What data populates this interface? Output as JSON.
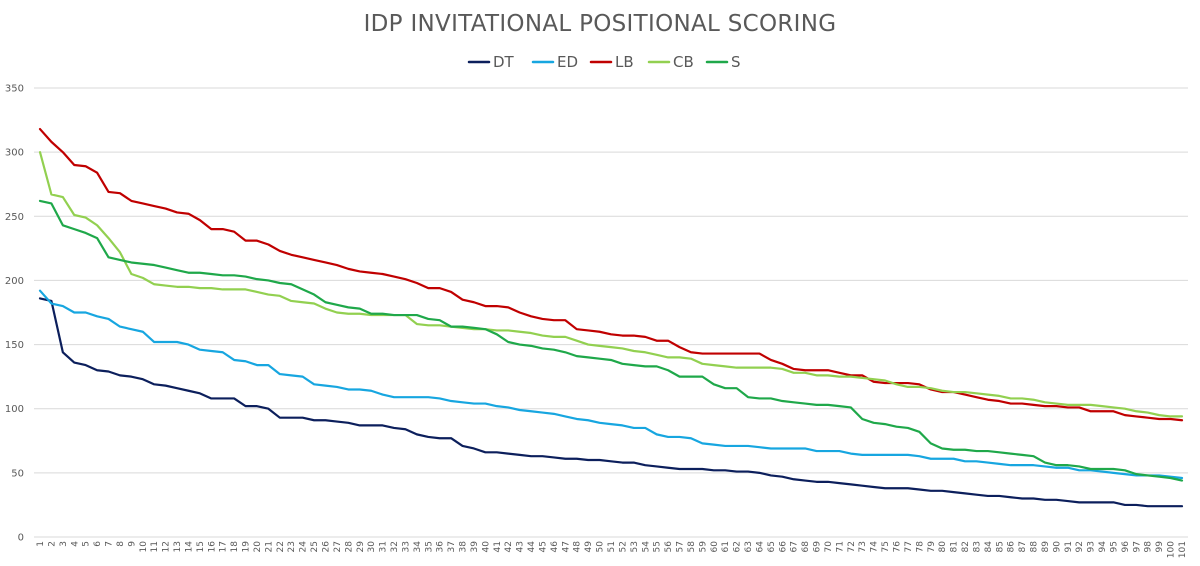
{
  "chart_data": {
    "type": "line",
    "title": "IDP INVITATIONAL POSITIONAL SCORING",
    "xlabel": "",
    "ylabel": "",
    "ylim": [
      0,
      350
    ],
    "yticks": [
      0,
      50,
      100,
      150,
      200,
      250,
      300,
      350
    ],
    "x": [
      1,
      2,
      3,
      4,
      5,
      6,
      7,
      8,
      9,
      10,
      11,
      12,
      13,
      14,
      15,
      16,
      17,
      18,
      19,
      20,
      21,
      22,
      23,
      24,
      25,
      26,
      27,
      28,
      29,
      30,
      31,
      32,
      33,
      34,
      35,
      36,
      37,
      38,
      39,
      40,
      41,
      42,
      43,
      44,
      45,
      46,
      47,
      48,
      49,
      50,
      51,
      52,
      53,
      54,
      55,
      56,
      57,
      58,
      59,
      60,
      61,
      62,
      63,
      64,
      65,
      66,
      67,
      68,
      69,
      70,
      71,
      72,
      73,
      74,
      75,
      76,
      77,
      78,
      79,
      80,
      81,
      82,
      83,
      84,
      85,
      86,
      87,
      88,
      89,
      90,
      91,
      92,
      93,
      94,
      95,
      96,
      97,
      98,
      99,
      100,
      101
    ],
    "grid": "horizontal",
    "legend_position": "top",
    "series": [
      {
        "name": "DT",
        "color": "#0c1f5c",
        "values": [
          186,
          184,
          144,
          136,
          134,
          130,
          129,
          126,
          125,
          123,
          119,
          118,
          116,
          114,
          112,
          108,
          108,
          108,
          102,
          102,
          100,
          93,
          93,
          93,
          91,
          91,
          90,
          89,
          87,
          87,
          87,
          85,
          84,
          80,
          78,
          77,
          77,
          71,
          69,
          66,
          66,
          65,
          64,
          63,
          63,
          62,
          61,
          61,
          60,
          60,
          59,
          58,
          58,
          56,
          55,
          54,
          53,
          53,
          53,
          52,
          52,
          51,
          51,
          50,
          48,
          47,
          45,
          44,
          43,
          43,
          42,
          41,
          40,
          39,
          38,
          38,
          38,
          37,
          36,
          36,
          35,
          34,
          33,
          32,
          32,
          31,
          30,
          30,
          29,
          29,
          28,
          27,
          27,
          27,
          27,
          25,
          25,
          24,
          24,
          24,
          24
        ]
      },
      {
        "name": "ED",
        "color": "#17a6e0",
        "values": [
          192,
          182,
          180,
          175,
          175,
          172,
          170,
          164,
          162,
          160,
          152,
          152,
          152,
          150,
          146,
          145,
          144,
          138,
          137,
          134,
          134,
          127,
          126,
          125,
          119,
          118,
          117,
          115,
          115,
          114,
          111,
          109,
          109,
          109,
          109,
          108,
          106,
          105,
          104,
          104,
          102,
          101,
          99,
          98,
          97,
          96,
          94,
          92,
          91,
          89,
          88,
          87,
          85,
          85,
          80,
          78,
          78,
          77,
          73,
          72,
          71,
          71,
          71,
          70,
          69,
          69,
          69,
          69,
          67,
          67,
          67,
          65,
          64,
          64,
          64,
          64,
          64,
          63,
          61,
          61,
          61,
          59,
          59,
          58,
          57,
          56,
          56,
          56,
          55,
          54,
          54,
          52,
          52,
          51,
          50,
          49,
          48,
          48,
          48,
          47,
          46
        ]
      },
      {
        "name": "LB",
        "color": "#c00000",
        "values": [
          318,
          308,
          300,
          290,
          289,
          284,
          269,
          268,
          262,
          260,
          258,
          256,
          253,
          252,
          247,
          240,
          240,
          238,
          231,
          231,
          228,
          223,
          220,
          218,
          216,
          214,
          212,
          209,
          207,
          206,
          205,
          203,
          201,
          198,
          194,
          194,
          191,
          185,
          183,
          180,
          180,
          179,
          175,
          172,
          170,
          169,
          169,
          162,
          161,
          160,
          158,
          157,
          157,
          156,
          153,
          153,
          148,
          144,
          143,
          143,
          143,
          143,
          143,
          143,
          138,
          135,
          131,
          130,
          130,
          130,
          128,
          126,
          126,
          121,
          120,
          120,
          120,
          119,
          115,
          113,
          113,
          111,
          109,
          107,
          106,
          104,
          104,
          103,
          102,
          102,
          101,
          101,
          98,
          98,
          98,
          95,
          94,
          93,
          92,
          92,
          91
        ]
      },
      {
        "name": "CB",
        "color": "#92d050",
        "values": [
          300,
          267,
          265,
          251,
          249,
          243,
          233,
          222,
          205,
          202,
          197,
          196,
          195,
          195,
          194,
          194,
          193,
          193,
          193,
          191,
          189,
          188,
          184,
          183,
          182,
          178,
          175,
          174,
          174,
          173,
          173,
          173,
          173,
          166,
          165,
          165,
          164,
          163,
          162,
          162,
          161,
          161,
          160,
          159,
          157,
          156,
          156,
          153,
          150,
          149,
          148,
          147,
          145,
          144,
          142,
          140,
          140,
          139,
          135,
          134,
          133,
          132,
          132,
          132,
          132,
          131,
          128,
          128,
          126,
          126,
          125,
          125,
          124,
          123,
          122,
          119,
          117,
          117,
          116,
          114,
          113,
          113,
          112,
          111,
          110,
          108,
          108,
          107,
          105,
          104,
          103,
          103,
          103,
          102,
          101,
          100,
          98,
          97,
          95,
          94,
          94
        ]
      },
      {
        "name": "S",
        "color": "#1fa84a",
        "values": [
          262,
          260,
          243,
          240,
          237,
          233,
          218,
          216,
          214,
          213,
          212,
          210,
          208,
          206,
          206,
          205,
          204,
          204,
          203,
          201,
          200,
          198,
          197,
          193,
          189,
          183,
          181,
          179,
          178,
          174,
          174,
          173,
          173,
          173,
          170,
          169,
          164,
          164,
          163,
          162,
          158,
          152,
          150,
          149,
          147,
          146,
          144,
          141,
          140,
          139,
          138,
          135,
          134,
          133,
          133,
          130,
          125,
          125,
          125,
          119,
          116,
          116,
          109,
          108,
          108,
          106,
          105,
          104,
          103,
          103,
          102,
          101,
          92,
          89,
          88,
          86,
          85,
          82,
          73,
          69,
          68,
          68,
          67,
          67,
          66,
          65,
          64,
          63,
          58,
          56,
          56,
          55,
          53,
          53,
          53,
          52,
          49,
          48,
          47,
          46,
          44
        ]
      }
    ]
  }
}
